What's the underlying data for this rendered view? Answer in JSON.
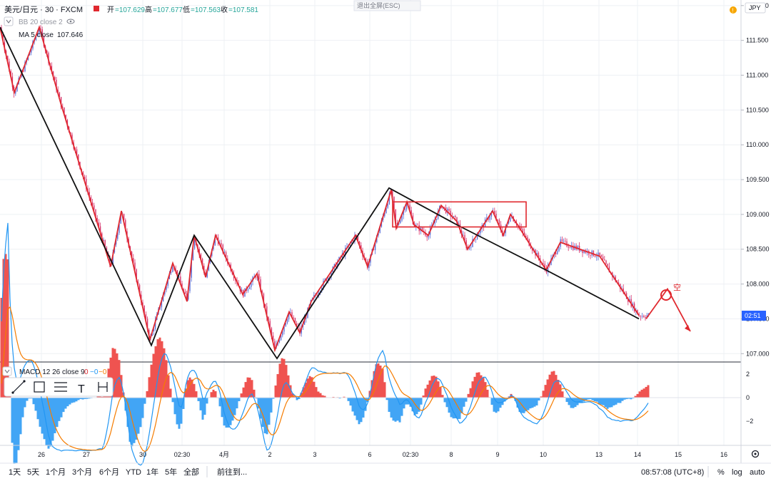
{
  "header": {
    "symbol_text": "美元/日元 · 30 · FXCM",
    "ohlc": [
      {
        "label": "开",
        "value": "107.629"
      },
      {
        "label": "高",
        "value": "107.677"
      },
      {
        "label": "低",
        "value": "107.563"
      },
      {
        "label": "收",
        "value": "107.581"
      }
    ],
    "exit_fullscreen": "退出全屏(ESC)",
    "currency": "JPY"
  },
  "indicators": {
    "bb_label": "BB 20 close 2",
    "ma_label": "MA 5 close",
    "ma_value": "107.646",
    "macd_label": "MACD 12 26 close 9",
    "macd_value_1": "0",
    "macd_value_2": "−0",
    "macd_value_3": "−0"
  },
  "chart_data": {
    "type": "line",
    "ylim": [
      106.88,
      112.08
    ],
    "y_ticks": [
      "112.000",
      "111.500",
      "111.000",
      "110.500",
      "110.000",
      "109.500",
      "109.000",
      "108.500",
      "108.000",
      "107.500",
      "107.000"
    ],
    "last_price_tag": "02:51",
    "x_tick_labels": [
      "26",
      "27",
      "30",
      "02:30",
      "4月",
      "2",
      "3",
      "6",
      "02:30",
      "8",
      "9",
      "10",
      "13",
      "14",
      "15",
      "16"
    ],
    "zigzag_red": [
      [
        0,
        111.69
      ],
      [
        20,
        110.75
      ],
      [
        55,
        111.69
      ],
      [
        85,
        110.6
      ],
      [
        155,
        108.25
      ],
      [
        170,
        109.05
      ],
      [
        210,
        107.2
      ],
      [
        242,
        108.3
      ],
      [
        262,
        107.75
      ],
      [
        272,
        108.7
      ],
      [
        288,
        108.1
      ],
      [
        302,
        108.7
      ],
      [
        340,
        107.85
      ],
      [
        360,
        108.15
      ],
      [
        385,
        107.05
      ],
      [
        405,
        107.6
      ],
      [
        420,
        107.3
      ],
      [
        436,
        107.75
      ],
      [
        498,
        108.7
      ],
      [
        515,
        108.25
      ],
      [
        548,
        109.35
      ],
      [
        555,
        108.8
      ],
      [
        570,
        109.18
      ],
      [
        580,
        108.85
      ],
      [
        600,
        108.7
      ],
      [
        618,
        109.13
      ],
      [
        640,
        108.9
      ],
      [
        655,
        108.5
      ],
      [
        690,
        109.05
      ],
      [
        705,
        108.7
      ],
      [
        715,
        109.0
      ],
      [
        725,
        108.85
      ],
      [
        765,
        108.2
      ],
      [
        785,
        108.6
      ],
      [
        840,
        108.4
      ],
      [
        895,
        107.55
      ]
    ],
    "zigzag_black": [
      [
        0,
        111.69
      ],
      [
        212,
        107.12
      ],
      [
        272,
        108.7
      ],
      [
        388,
        106.93
      ],
      [
        545,
        109.38
      ],
      [
        640,
        108.85
      ],
      [
        765,
        108.2
      ],
      [
        895,
        107.5
      ]
    ],
    "projection": [
      [
        905,
        107.5
      ],
      [
        935,
        107.93
      ],
      [
        967,
        107.32
      ]
    ],
    "box_range": [
      [
        550,
        737
      ],
      [
        108.82,
        109.18
      ]
    ],
    "annotation_text": "空",
    "macd": {
      "ylim": [
        -3.5,
        3.5
      ],
      "y_ticks": [
        "2",
        "0",
        "−2"
      ]
    }
  },
  "toolbar": {
    "ranges": [
      "1天",
      "5天",
      "1个月",
      "3个月",
      "6个月",
      "YTD",
      "1年",
      "5年",
      "全部"
    ],
    "goto": "前往到...",
    "time": "08:57:08 (UTC+8)",
    "percent": "%",
    "log": "log",
    "auto": "auto"
  }
}
